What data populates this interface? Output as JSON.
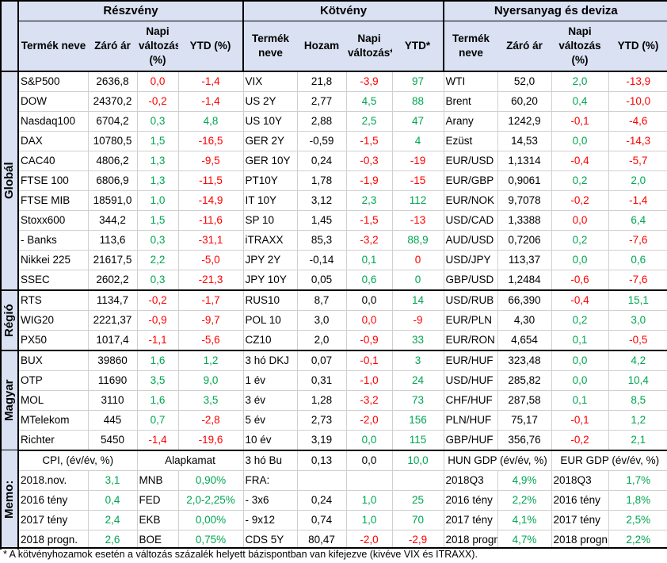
{
  "headers": {
    "equity": "Részvény",
    "bond": "Kötvény",
    "commodity": "Nyersanyag és deviza",
    "product_name": "Termék neve",
    "close": "Záró ár",
    "daily_change_pct": "Napi változás (%)",
    "ytd_pct": "YTD (%)",
    "yield": "Hozam",
    "daily_change_star": "Napi változás*",
    "ytd_star": "YTD*"
  },
  "sections": {
    "global": "Globál",
    "region": "Régió",
    "hungary": "Magyar",
    "memo": "Memo:"
  },
  "rows": [
    {
      "e": [
        "S&P500",
        "2636,8",
        "0,0",
        "-1,4"
      ],
      "b": [
        "VIX",
        "21,8",
        "-3,9",
        "97"
      ],
      "c": [
        "WTI",
        "52,0",
        "2,0",
        "-13,9"
      ],
      "ec": [
        "r",
        "r"
      ],
      "bc": [
        "r",
        "g"
      ],
      "cc": [
        "g",
        "r"
      ]
    },
    {
      "e": [
        "DOW",
        "24370,2",
        "-0,2",
        "-1,4"
      ],
      "b": [
        "US 2Y",
        "2,77",
        "4,5",
        "88"
      ],
      "c": [
        "Brent",
        "60,20",
        "0,4",
        "-10,0"
      ],
      "ec": [
        "r",
        "r"
      ],
      "bc": [
        "g",
        "g"
      ],
      "cc": [
        "g",
        "r"
      ]
    },
    {
      "e": [
        "Nasdaq100",
        "6704,2",
        "0,3",
        "4,8"
      ],
      "b": [
        "US 10Y",
        "2,88",
        "2,5",
        "47"
      ],
      "c": [
        "Arany",
        "1242,9",
        "-0,1",
        "-4,6"
      ],
      "ec": [
        "g",
        "g"
      ],
      "bc": [
        "g",
        "g"
      ],
      "cc": [
        "r",
        "r"
      ]
    },
    {
      "e": [
        "DAX",
        "10780,5",
        "1,5",
        "-16,5"
      ],
      "b": [
        "GER 2Y",
        "-0,59",
        "-1,5",
        "4"
      ],
      "c": [
        "Ezüst",
        "14,53",
        "0,0",
        "-14,3"
      ],
      "ec": [
        "g",
        "r"
      ],
      "bc": [
        "r",
        "g"
      ],
      "cc": [
        "g",
        "r"
      ]
    },
    {
      "e": [
        "CAC40",
        "4806,2",
        "1,3",
        "-9,5"
      ],
      "b": [
        "GER 10Y",
        "0,24",
        "-0,3",
        "-19"
      ],
      "c": [
        "EUR/USD",
        "1,1314",
        "-0,4",
        "-5,7"
      ],
      "ec": [
        "g",
        "r"
      ],
      "bc": [
        "r",
        "r"
      ],
      "cc": [
        "r",
        "r"
      ]
    },
    {
      "e": [
        "FTSE 100",
        "6806,9",
        "1,3",
        "-11,5"
      ],
      "b": [
        "PT10Y",
        "1,78",
        "-1,9",
        "-15"
      ],
      "c": [
        "EUR/GBP",
        "0,9061",
        "0,2",
        "2,0"
      ],
      "ec": [
        "g",
        "r"
      ],
      "bc": [
        "r",
        "r"
      ],
      "cc": [
        "g",
        "g"
      ]
    },
    {
      "e": [
        "FTSE MIB",
        "18591,0",
        "1,0",
        "-14,9"
      ],
      "b": [
        "IT 10Y",
        "3,12",
        "2,3",
        "112"
      ],
      "c": [
        "EUR/NOK",
        "9,7078",
        "-0,2",
        "-1,4"
      ],
      "ec": [
        "g",
        "r"
      ],
      "bc": [
        "g",
        "g"
      ],
      "cc": [
        "r",
        "r"
      ]
    },
    {
      "e": [
        "Stoxx600",
        "344,2",
        "1,5",
        "-11,6"
      ],
      "b": [
        "SP 10",
        "1,45",
        "-1,5",
        "-13"
      ],
      "c": [
        "USD/CAD",
        "1,3388",
        "0,0",
        "6,4"
      ],
      "ec": [
        "g",
        "r"
      ],
      "bc": [
        "r",
        "r"
      ],
      "cc": [
        "r",
        "g"
      ]
    },
    {
      "e": [
        "  - Banks",
        "113,6",
        "0,3",
        "-31,1"
      ],
      "b": [
        "iTRAXX",
        "85,3",
        "-3,2",
        "88,9"
      ],
      "c": [
        "AUD/USD",
        "0,7206",
        "0,2",
        "-7,6"
      ],
      "ec": [
        "g",
        "r"
      ],
      "bc": [
        "r",
        "g"
      ],
      "cc": [
        "g",
        "r"
      ]
    },
    {
      "e": [
        "Nikkei 225",
        "21617,5",
        "2,2",
        "-5,0"
      ],
      "b": [
        "JPY 2Y",
        "-0,14",
        "0,1",
        "0"
      ],
      "c": [
        "USD/JPY",
        "113,37",
        "0,0",
        "0,6"
      ],
      "ec": [
        "g",
        "r"
      ],
      "bc": [
        "g",
        "r"
      ],
      "cc": [
        "g",
        "g"
      ]
    },
    {
      "e": [
        "SSEC",
        "2602,2",
        "0,3",
        "-21,3"
      ],
      "b": [
        "JPY 10Y",
        "0,05",
        "0,6",
        "0"
      ],
      "c": [
        "GBP/USD",
        "1,2484",
        "-0,6",
        "-7,6"
      ],
      "ec": [
        "g",
        "r"
      ],
      "bc": [
        "g",
        "g"
      ],
      "cc": [
        "r",
        "r"
      ]
    },
    {
      "e": [
        "RTS",
        "1134,7",
        "-0,2",
        "-1,7"
      ],
      "b": [
        "RUS10",
        "8,7",
        "0,0",
        "14"
      ],
      "c": [
        "USD/RUB",
        "66,390",
        "-0,4",
        "15,1"
      ],
      "ec": [
        "r",
        "r"
      ],
      "bc": [
        "k",
        "g"
      ],
      "cc": [
        "r",
        "g"
      ]
    },
    {
      "e": [
        "WIG20",
        "2221,37",
        "-0,9",
        "-9,7"
      ],
      "b": [
        "POL 10",
        "3,0",
        "0,0",
        "-9"
      ],
      "c": [
        "EUR/PLN",
        "4,30",
        "0,2",
        "3,0"
      ],
      "ec": [
        "r",
        "r"
      ],
      "bc": [
        "r",
        "r"
      ],
      "cc": [
        "g",
        "g"
      ]
    },
    {
      "e": [
        "PX50",
        "1017,4",
        "-1,1",
        "-5,6"
      ],
      "b": [
        "CZ10",
        "2,0",
        "-0,9",
        "33"
      ],
      "c": [
        "EUR/RON",
        "4,654",
        "0,1",
        "-0,5"
      ],
      "ec": [
        "r",
        "r"
      ],
      "bc": [
        "r",
        "g"
      ],
      "cc": [
        "g",
        "r"
      ]
    },
    {
      "e": [
        "BUX",
        "39860",
        "1,6",
        "1,2"
      ],
      "b": [
        "3 hó DKJ",
        "0,07",
        "-0,1",
        "3"
      ],
      "c": [
        "EUR/HUF",
        "323,48",
        "0,0",
        "4,2"
      ],
      "ec": [
        "g",
        "g"
      ],
      "bc": [
        "r",
        "g"
      ],
      "cc": [
        "g",
        "g"
      ]
    },
    {
      "e": [
        "OTP",
        "11690",
        "3,5",
        "9,0"
      ],
      "b": [
        "1 év",
        "0,31",
        "-1,0",
        "24"
      ],
      "c": [
        "USD/HUF",
        "285,82",
        "0,0",
        "10,4"
      ],
      "ec": [
        "g",
        "g"
      ],
      "bc": [
        "r",
        "g"
      ],
      "cc": [
        "g",
        "g"
      ]
    },
    {
      "e": [
        "MOL",
        "3110",
        "1,6",
        "3,5"
      ],
      "b": [
        "3 év",
        "1,28",
        "-3,2",
        "73"
      ],
      "c": [
        "CHF/HUF",
        "287,58",
        "0,1",
        "8,5"
      ],
      "ec": [
        "g",
        "g"
      ],
      "bc": [
        "r",
        "g"
      ],
      "cc": [
        "g",
        "g"
      ]
    },
    {
      "e": [
        "MTelekom",
        "445",
        "0,7",
        "-2,8"
      ],
      "b": [
        "5 év",
        "2,73",
        "-2,0",
        "156"
      ],
      "c": [
        "PLN/HUF",
        "75,17",
        "-0,1",
        "1,2"
      ],
      "ec": [
        "g",
        "r"
      ],
      "bc": [
        "r",
        "g"
      ],
      "cc": [
        "r",
        "g"
      ]
    },
    {
      "e": [
        "Richter",
        "5450",
        "-1,4",
        "-19,6"
      ],
      "b": [
        "10 év",
        "3,19",
        "0,0",
        "115"
      ],
      "c": [
        "GBP/HUF",
        "356,76",
        "-0,2",
        "2,1"
      ],
      "ec": [
        "r",
        "r"
      ],
      "bc": [
        "g",
        "g"
      ],
      "cc": [
        "r",
        "g"
      ]
    }
  ],
  "memo": {
    "cpi_label": "CPI, (év/év, %)",
    "rate_label": "Alapkamat",
    "b_label": [
      "3 hó Bu",
      "0,13",
      "0,0",
      "10,0"
    ],
    "hun_gdp_label": "HUN GDP (év/év, %)",
    "eur_gdp_label": "EUR GDP (év/év, %)",
    "rows": [
      {
        "cpi": [
          "2018.nov.",
          "3,1"
        ],
        "rate": [
          "MNB",
          "0,90%"
        ],
        "b": [
          "FRA:",
          "",
          "",
          ""
        ],
        "hun": [
          "2018Q3",
          "4,9%"
        ],
        "eur": [
          "2018Q3",
          "1,7%"
        ]
      },
      {
        "cpi": [
          "2016 tény",
          "0,4"
        ],
        "rate": [
          "FED",
          "2,0-2,25%"
        ],
        "b": [
          "  - 3x6",
          "0,24",
          "1,0",
          "25"
        ],
        "hun": [
          "2016 tény",
          "2,2%"
        ],
        "eur": [
          "2016 tény",
          "1,8%"
        ]
      },
      {
        "cpi": [
          "2017 tény",
          "2,4"
        ],
        "rate": [
          "EKB",
          "0,00%"
        ],
        "b": [
          "  - 9x12",
          "0,74",
          "1,0",
          "70"
        ],
        "hun": [
          "2017 tény",
          "4,1%"
        ],
        "eur": [
          "2017 tény",
          "2,5%"
        ]
      },
      {
        "cpi": [
          "2018 progn.",
          "2,6"
        ],
        "rate": [
          "BOE",
          "0,75%"
        ],
        "b": [
          "CDS 5Y",
          "80,47",
          "-2,0",
          "-2,9"
        ],
        "hun": [
          "2018 progn.",
          "4,7%"
        ],
        "eur": [
          "2018 progn.",
          "2,2%"
        ]
      }
    ]
  },
  "footnote": "* A kötvényhozamok esetén a változás százalék helyett bázispontban van kifejezve (kivéve VIX és ITRAXX).",
  "colors": {
    "header_bg": "#d9e1f2",
    "positive": "#00a651",
    "negative": "#ff0000"
  }
}
